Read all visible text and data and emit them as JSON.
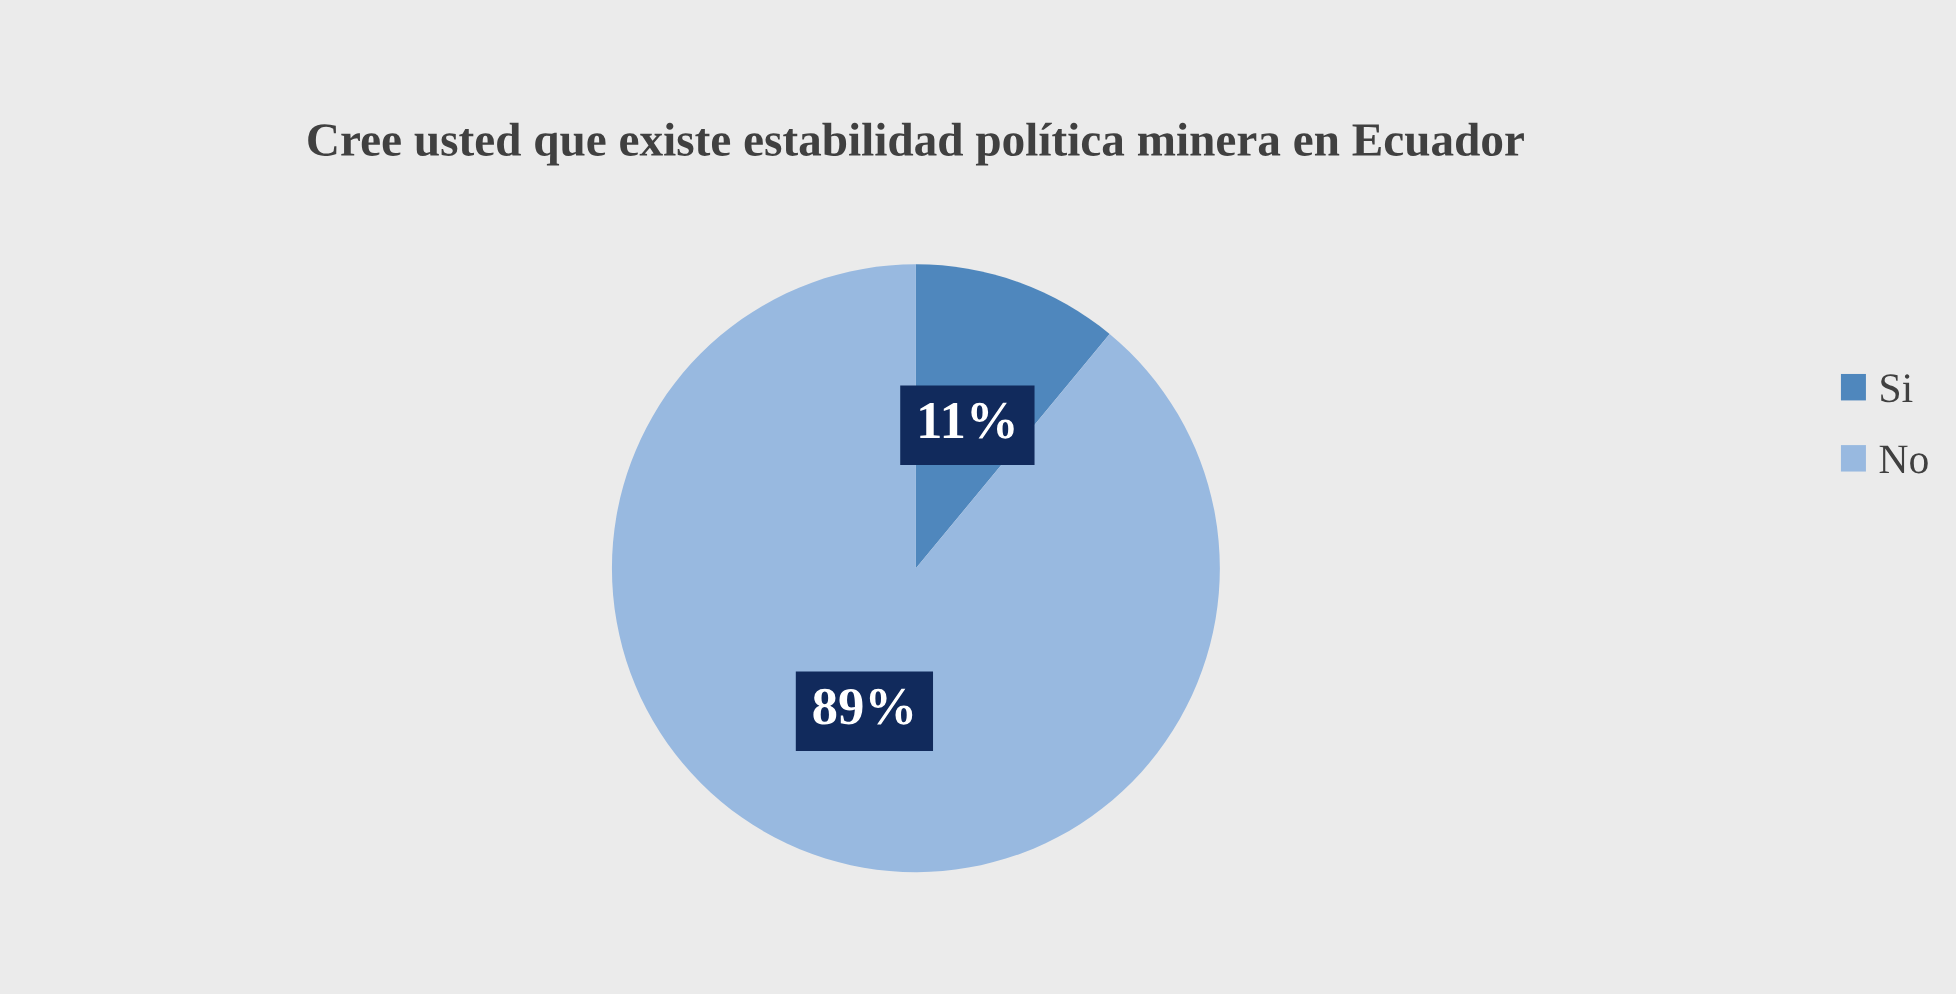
{
  "chart_data": {
    "type": "pie",
    "title": "Cree usted que existe estabilidad política minera en Ecuador",
    "categories": [
      "Si",
      "No"
    ],
    "values": [
      11,
      89
    ],
    "colors": [
      "#4f87bd",
      "#98b9e0"
    ],
    "value_labels": [
      "11%",
      "89%"
    ],
    "legend": "right"
  }
}
